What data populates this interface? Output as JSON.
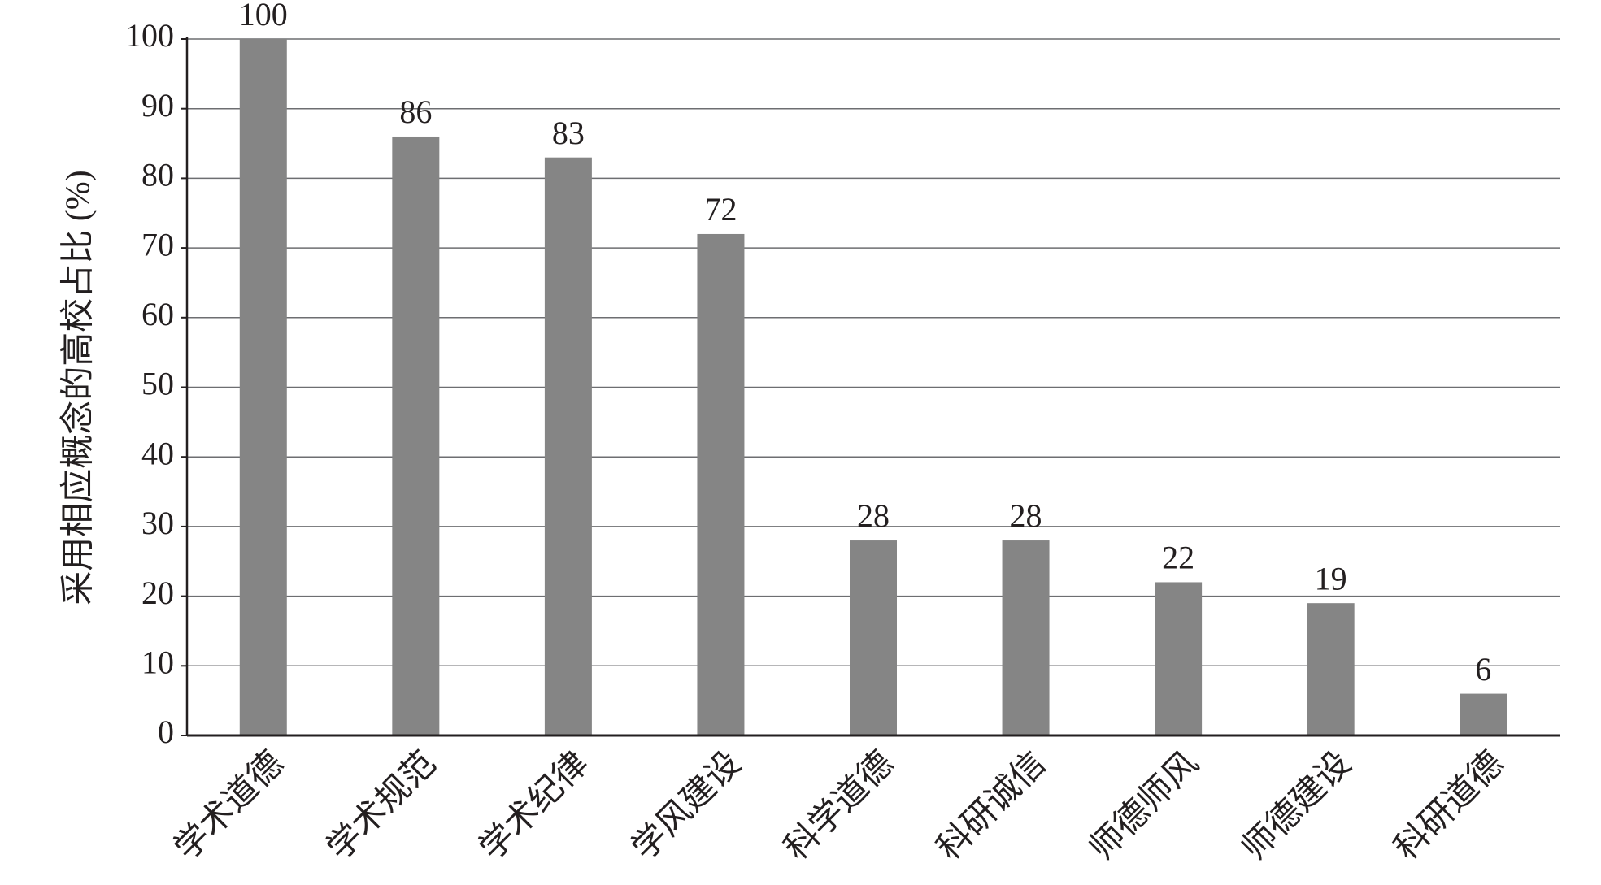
{
  "chart_data": {
    "type": "bar",
    "ylabel": "采用相应概念的高校占比 (%)",
    "categories": [
      "学术道德",
      "学术规范",
      "学术纪律",
      "学风建设",
      "科学道德",
      "科研诚信",
      "师德师风",
      "师德建设",
      "科研道德"
    ],
    "values": [
      100,
      86,
      83,
      72,
      28,
      28,
      22,
      19,
      6
    ],
    "color": "#858585",
    "ylim": [
      0,
      100
    ],
    "yticks": [
      0,
      10,
      20,
      30,
      40,
      50,
      60,
      70,
      80,
      90,
      100
    ],
    "grid": true
  }
}
